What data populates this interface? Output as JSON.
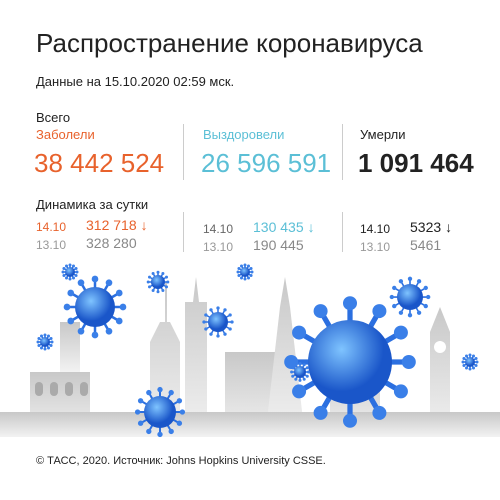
{
  "header": {
    "title": "Распространение коронавируса",
    "subtitle": "Данные на 15.10.2020 02:59 мск."
  },
  "totals": {
    "label": "Всего",
    "columns": [
      {
        "label": "Заболели",
        "value": "38 442 524"
      },
      {
        "label": "Выздоровели",
        "value": "26 596 591"
      },
      {
        "label": "Умерли",
        "value": "1 091 464"
      }
    ]
  },
  "daily": {
    "label": "Динамика за сутки",
    "columns": [
      {
        "rows": [
          {
            "date": "14.10",
            "value": "312 718"
          },
          {
            "date": "13.10",
            "value": "328 280"
          }
        ]
      },
      {
        "rows": [
          {
            "date": "14.10",
            "value": "130 435"
          },
          {
            "date": "13.10",
            "value": "190 445"
          }
        ]
      },
      {
        "rows": [
          {
            "date": "14.10",
            "value": "5323"
          },
          {
            "date": "13.10",
            "value": "5461"
          }
        ]
      }
    ]
  },
  "footer": "© ТАСС, 2020. Источник: Johns Hopkins University CSSE."
}
